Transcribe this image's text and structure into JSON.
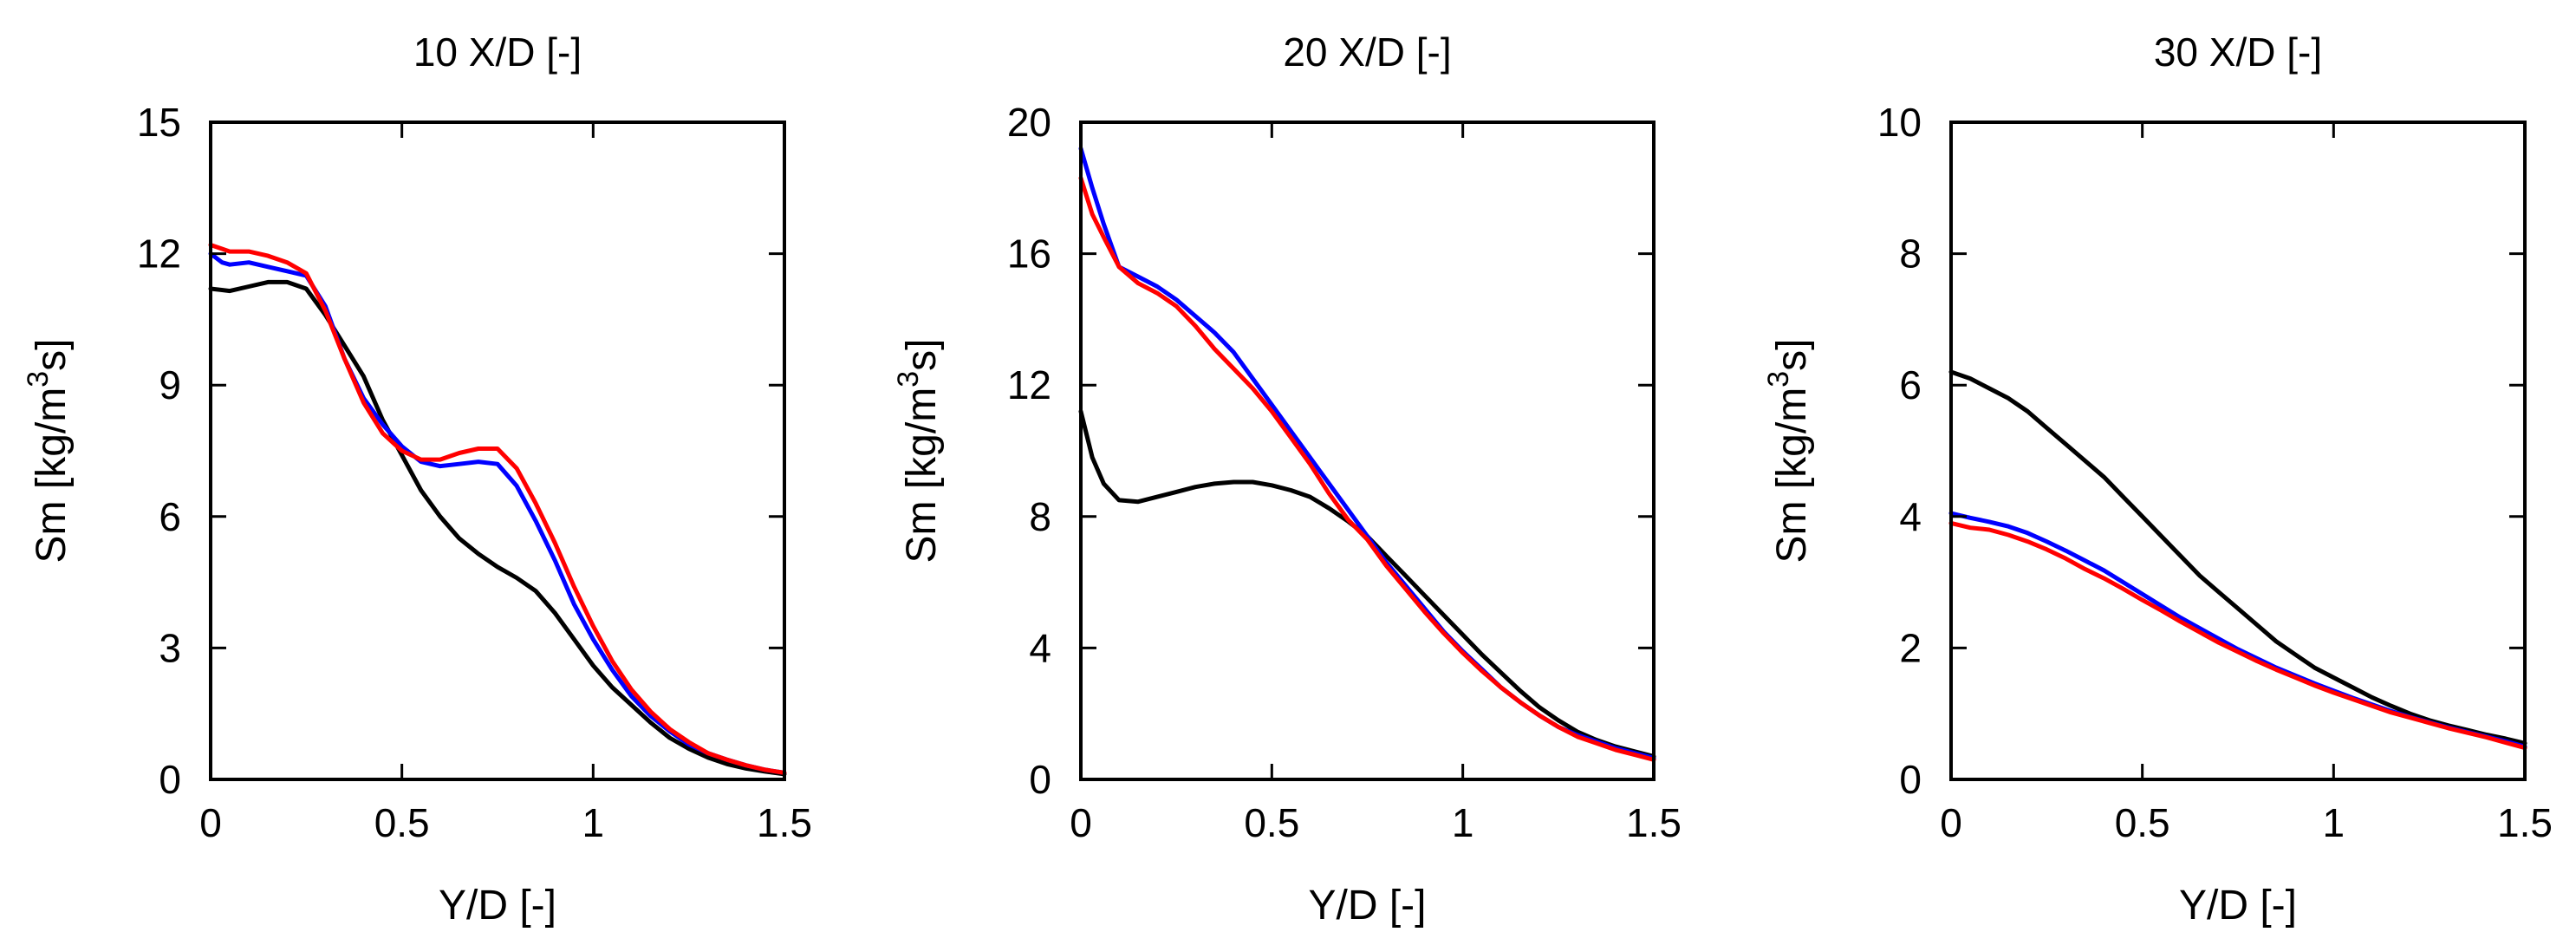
{
  "chart_data": [
    {
      "type": "line",
      "title": "10 X/D [-]",
      "xlabel": "Y/D [-]",
      "ylabel_main": "Sm [kg/m",
      "ylabel_sup": "3",
      "ylabel_end": "s]",
      "xlim": [
        0,
        1.5
      ],
      "ylim": [
        0,
        15
      ],
      "xticks": [
        0,
        0.5,
        1,
        1.5
      ],
      "xtick_labels": [
        "0",
        "0.5",
        "1",
        "1.5"
      ],
      "yticks": [
        0,
        3,
        6,
        9,
        12,
        15
      ],
      "ytick_labels": [
        "0",
        "3",
        "6",
        "9",
        "12",
        "15"
      ],
      "grid": false,
      "series": [
        {
          "name": "black",
          "color": "#000000",
          "x": [
            0,
            0.05,
            0.1,
            0.15,
            0.2,
            0.25,
            0.3,
            0.35,
            0.4,
            0.45,
            0.5,
            0.55,
            0.6,
            0.65,
            0.7,
            0.75,
            0.8,
            0.85,
            0.9,
            0.95,
            1.0,
            1.05,
            1.1,
            1.15,
            1.2,
            1.25,
            1.3,
            1.35,
            1.4,
            1.45,
            1.5
          ],
          "y": [
            11.2,
            11.15,
            11.25,
            11.35,
            11.35,
            11.2,
            10.6,
            9.9,
            9.2,
            8.2,
            7.4,
            6.6,
            6.0,
            5.5,
            5.15,
            4.85,
            4.6,
            4.3,
            3.8,
            3.2,
            2.6,
            2.1,
            1.7,
            1.3,
            0.95,
            0.7,
            0.5,
            0.35,
            0.25,
            0.18,
            0.12
          ]
        },
        {
          "name": "blue",
          "color": "#0000ff",
          "x": [
            0,
            0.03,
            0.05,
            0.1,
            0.15,
            0.2,
            0.25,
            0.3,
            0.35,
            0.4,
            0.45,
            0.5,
            0.55,
            0.6,
            0.65,
            0.7,
            0.75,
            0.8,
            0.85,
            0.9,
            0.95,
            1.0,
            1.05,
            1.1,
            1.15,
            1.2,
            1.25,
            1.3,
            1.35,
            1.4,
            1.45,
            1.5
          ],
          "y": [
            12.0,
            11.8,
            11.75,
            11.8,
            11.7,
            11.6,
            11.5,
            10.8,
            9.6,
            8.7,
            8.1,
            7.6,
            7.25,
            7.15,
            7.2,
            7.25,
            7.2,
            6.7,
            5.9,
            5.0,
            4.0,
            3.2,
            2.5,
            1.9,
            1.45,
            1.1,
            0.8,
            0.6,
            0.45,
            0.32,
            0.22,
            0.15
          ]
        },
        {
          "name": "red",
          "color": "#ff0000",
          "x": [
            0,
            0.05,
            0.1,
            0.15,
            0.2,
            0.25,
            0.3,
            0.35,
            0.4,
            0.45,
            0.5,
            0.55,
            0.6,
            0.65,
            0.7,
            0.75,
            0.8,
            0.85,
            0.9,
            0.95,
            1.0,
            1.05,
            1.1,
            1.15,
            1.2,
            1.25,
            1.3,
            1.35,
            1.4,
            1.45,
            1.5
          ],
          "y": [
            12.2,
            12.05,
            12.05,
            11.95,
            11.8,
            11.55,
            10.7,
            9.6,
            8.6,
            7.9,
            7.5,
            7.3,
            7.3,
            7.45,
            7.55,
            7.55,
            7.1,
            6.3,
            5.4,
            4.4,
            3.5,
            2.7,
            2.05,
            1.55,
            1.15,
            0.85,
            0.6,
            0.45,
            0.32,
            0.22,
            0.15
          ]
        }
      ]
    },
    {
      "type": "line",
      "title": "20 X/D [-]",
      "xlabel": "Y/D [-]",
      "ylabel_main": "Sm [kg/m",
      "ylabel_sup": "3",
      "ylabel_end": "s]",
      "xlim": [
        0,
        1.5
      ],
      "ylim": [
        0,
        20
      ],
      "xticks": [
        0,
        0.5,
        1,
        1.5
      ],
      "xtick_labels": [
        "0",
        "0.5",
        "1",
        "1.5"
      ],
      "yticks": [
        0,
        4,
        8,
        12,
        16,
        20
      ],
      "ytick_labels": [
        "0",
        "4",
        "8",
        "12",
        "16",
        "20"
      ],
      "grid": false,
      "series": [
        {
          "name": "black",
          "color": "#000000",
          "x": [
            0,
            0.03,
            0.06,
            0.1,
            0.15,
            0.2,
            0.25,
            0.3,
            0.35,
            0.4,
            0.45,
            0.5,
            0.55,
            0.6,
            0.65,
            0.7,
            0.75,
            0.8,
            0.85,
            0.9,
            0.95,
            1.0,
            1.05,
            1.1,
            1.15,
            1.2,
            1.25,
            1.3,
            1.35,
            1.4,
            1.45,
            1.5
          ],
          "y": [
            11.2,
            9.8,
            9.0,
            8.5,
            8.45,
            8.6,
            8.75,
            8.9,
            9.0,
            9.05,
            9.05,
            8.95,
            8.8,
            8.6,
            8.25,
            7.85,
            7.4,
            6.8,
            6.2,
            5.6,
            5.0,
            4.4,
            3.8,
            3.25,
            2.7,
            2.2,
            1.8,
            1.45,
            1.2,
            1.0,
            0.85,
            0.7
          ]
        },
        {
          "name": "blue",
          "color": "#0000ff",
          "x": [
            0,
            0.03,
            0.06,
            0.1,
            0.15,
            0.2,
            0.25,
            0.3,
            0.35,
            0.4,
            0.45,
            0.5,
            0.55,
            0.6,
            0.65,
            0.7,
            0.75,
            0.8,
            0.85,
            0.9,
            0.95,
            1.0,
            1.05,
            1.1,
            1.15,
            1.2,
            1.25,
            1.3,
            1.35,
            1.4,
            1.45,
            1.5
          ],
          "y": [
            19.2,
            18.0,
            16.9,
            15.6,
            15.3,
            15.0,
            14.6,
            14.1,
            13.6,
            13.0,
            12.2,
            11.4,
            10.6,
            9.8,
            9.0,
            8.2,
            7.4,
            6.6,
            5.9,
            5.2,
            4.5,
            3.9,
            3.35,
            2.8,
            2.35,
            1.95,
            1.6,
            1.35,
            1.15,
            0.95,
            0.8,
            0.65
          ]
        },
        {
          "name": "red",
          "color": "#ff0000",
          "x": [
            0,
            0.03,
            0.06,
            0.1,
            0.15,
            0.2,
            0.25,
            0.3,
            0.35,
            0.4,
            0.45,
            0.5,
            0.55,
            0.6,
            0.65,
            0.7,
            0.75,
            0.8,
            0.85,
            0.9,
            0.95,
            1.0,
            1.05,
            1.1,
            1.15,
            1.2,
            1.25,
            1.3,
            1.35,
            1.4,
            1.45,
            1.5
          ],
          "y": [
            18.3,
            17.2,
            16.5,
            15.6,
            15.1,
            14.8,
            14.4,
            13.8,
            13.1,
            12.5,
            11.9,
            11.2,
            10.4,
            9.6,
            8.7,
            7.9,
            7.3,
            6.5,
            5.8,
            5.1,
            4.45,
            3.85,
            3.3,
            2.8,
            2.35,
            1.95,
            1.6,
            1.3,
            1.1,
            0.9,
            0.75,
            0.6
          ]
        }
      ]
    },
    {
      "type": "line",
      "title": "30 X/D [-]",
      "xlabel": "Y/D [-]",
      "ylabel_main": "Sm [kg/m",
      "ylabel_sup": "3",
      "ylabel_end": "s]",
      "xlim": [
        0,
        1.5
      ],
      "ylim": [
        0,
        10
      ],
      "xticks": [
        0,
        0.5,
        1,
        1.5
      ],
      "xtick_labels": [
        "0",
        "0.5",
        "1",
        "1.5"
      ],
      "yticks": [
        0,
        2,
        4,
        6,
        8,
        10
      ],
      "ytick_labels": [
        "0",
        "2",
        "4",
        "6",
        "8",
        "10"
      ],
      "grid": false,
      "series": [
        {
          "name": "black",
          "color": "#000000",
          "x": [
            0,
            0.05,
            0.1,
            0.15,
            0.2,
            0.25,
            0.3,
            0.35,
            0.4,
            0.45,
            0.5,
            0.55,
            0.6,
            0.65,
            0.7,
            0.75,
            0.8,
            0.85,
            0.9,
            0.95,
            1.0,
            1.05,
            1.1,
            1.15,
            1.2,
            1.25,
            1.3,
            1.35,
            1.4,
            1.45,
            1.5
          ],
          "y": [
            6.2,
            6.1,
            5.95,
            5.8,
            5.6,
            5.35,
            5.1,
            4.85,
            4.6,
            4.3,
            4.0,
            3.7,
            3.4,
            3.1,
            2.85,
            2.6,
            2.35,
            2.1,
            1.9,
            1.7,
            1.55,
            1.4,
            1.25,
            1.12,
            1.0,
            0.9,
            0.82,
            0.75,
            0.68,
            0.62,
            0.55
          ]
        },
        {
          "name": "blue",
          "color": "#0000ff",
          "x": [
            0,
            0.05,
            0.1,
            0.15,
            0.2,
            0.25,
            0.3,
            0.35,
            0.4,
            0.45,
            0.5,
            0.55,
            0.6,
            0.65,
            0.7,
            0.75,
            0.8,
            0.85,
            0.9,
            0.95,
            1.0,
            1.05,
            1.1,
            1.15,
            1.2,
            1.25,
            1.3,
            1.35,
            1.4,
            1.45,
            1.5
          ],
          "y": [
            4.05,
            3.98,
            3.92,
            3.85,
            3.75,
            3.62,
            3.48,
            3.33,
            3.18,
            3.0,
            2.82,
            2.64,
            2.46,
            2.3,
            2.14,
            1.98,
            1.84,
            1.7,
            1.58,
            1.46,
            1.35,
            1.24,
            1.14,
            1.04,
            0.95,
            0.87,
            0.79,
            0.72,
            0.65,
            0.58,
            0.5
          ]
        },
        {
          "name": "red",
          "color": "#ff0000",
          "x": [
            0,
            0.05,
            0.1,
            0.15,
            0.2,
            0.25,
            0.3,
            0.35,
            0.4,
            0.45,
            0.5,
            0.55,
            0.6,
            0.65,
            0.7,
            0.75,
            0.8,
            0.85,
            0.9,
            0.95,
            1.0,
            1.05,
            1.1,
            1.15,
            1.2,
            1.25,
            1.3,
            1.35,
            1.4,
            1.45,
            1.5
          ],
          "y": [
            3.9,
            3.83,
            3.8,
            3.72,
            3.62,
            3.5,
            3.36,
            3.2,
            3.06,
            2.9,
            2.73,
            2.57,
            2.4,
            2.24,
            2.08,
            1.94,
            1.8,
            1.67,
            1.55,
            1.43,
            1.32,
            1.22,
            1.12,
            1.02,
            0.94,
            0.86,
            0.78,
            0.71,
            0.64,
            0.56,
            0.48
          ]
        }
      ]
    }
  ]
}
